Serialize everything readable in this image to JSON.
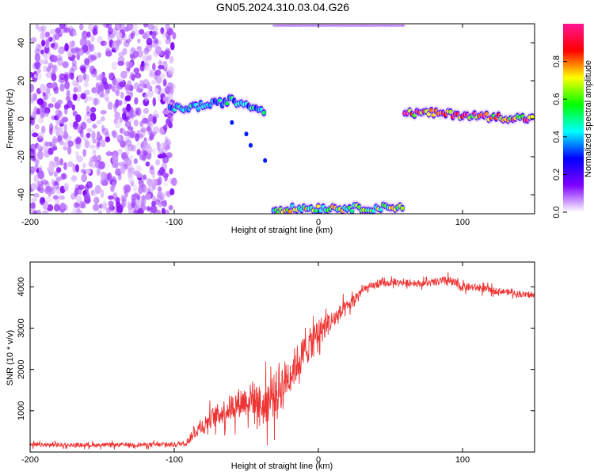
{
  "figure_title": "GN05.2024.310.03.04.G26",
  "chart_data": [
    {
      "type": "heatmap",
      "title": "GN05.2024.310.03.04.G26",
      "xlabel": "Height of straight line (km)",
      "ylabel": "Frequency (Hz)",
      "xlim": [
        -200,
        150
      ],
      "ylim": [
        -50,
        50
      ],
      "xticks": [
        -200,
        -100,
        0,
        100
      ],
      "yticks": [
        -40,
        -20,
        0,
        20,
        40
      ],
      "colorbar": {
        "label": "Normalized spectral amplitude",
        "range": [
          0,
          1
        ],
        "ticks": [
          0.0,
          0.2,
          0.4,
          0.6,
          0.8
        ],
        "tick_labels": [
          "0.0",
          "0.2",
          "0.4",
          "0.6",
          "0.8"
        ],
        "colors": [
          "#ffffff",
          "#7f00ff",
          "#0000ff",
          "#00ffff",
          "#00ff00",
          "#ffff00",
          "#ff0000",
          "#ff1493"
        ]
      },
      "features": [
        {
          "region": "noise",
          "x_range": [
            -200,
            -100
          ],
          "y_range": [
            -50,
            50
          ],
          "amplitude": 0.1
        },
        {
          "region": "band",
          "points": [
            [
              -103,
              5
            ],
            [
              -90,
              6
            ],
            [
              -80,
              7
            ],
            [
              -70,
              8
            ],
            [
              -60,
              10
            ],
            [
              -55,
              8
            ],
            [
              -50,
              8
            ],
            [
              -45,
              6
            ],
            [
              -36,
              4
            ]
          ],
          "amplitude": 0.45
        },
        {
          "region": "band",
          "points": [
            [
              -31,
              -48
            ],
            [
              -10,
              -47
            ],
            [
              20,
              -47
            ],
            [
              40,
              -47
            ],
            [
              60,
              -46
            ]
          ],
          "amplitude": 0.65
        },
        {
          "region": "band",
          "points": [
            [
              60,
              3
            ],
            [
              80,
              3
            ],
            [
              100,
              2
            ],
            [
              120,
              1
            ],
            [
              150,
              0
            ]
          ],
          "amplitude": 0.9
        },
        {
          "region": "scatter",
          "points": [
            [
              -60,
              -2
            ],
            [
              -50,
              -8
            ],
            [
              -47,
              -14
            ],
            [
              -37,
              -22
            ]
          ],
          "amplitude": 0.3
        },
        {
          "region": "faint",
          "points": [
            [
              -30,
              49
            ],
            [
              0,
              49
            ],
            [
              30,
              49
            ],
            [
              60,
              49
            ]
          ],
          "amplitude": 0.1
        }
      ]
    },
    {
      "type": "line",
      "xlabel": "Height of straight line (km)",
      "ylabel": "SNR (10 * v/v)",
      "xlim": [
        -200,
        150
      ],
      "ylim": [
        0,
        4600
      ],
      "xticks": [
        -200,
        -100,
        0,
        100
      ],
      "yticks": [
        1000,
        2000,
        3000,
        4000
      ],
      "color": "#ee3333",
      "series": [
        {
          "x": [
            -200,
            -150,
            -100,
            -92,
            -85,
            -75,
            -65,
            -55,
            -45,
            -38,
            -30,
            -20,
            -10,
            0,
            10,
            20,
            30,
            40,
            50,
            60,
            70,
            80,
            90,
            100,
            110,
            120,
            130,
            140,
            150
          ],
          "y": [
            170,
            170,
            180,
            220,
            500,
            800,
            1000,
            1200,
            1300,
            1100,
            1400,
            1900,
            2400,
            2900,
            3200,
            3500,
            3900,
            4050,
            4100,
            4100,
            4080,
            4100,
            4150,
            4000,
            3980,
            3920,
            3880,
            3820,
            3780
          ],
          "noise": [
            80,
            80,
            90,
            120,
            250,
            380,
            500,
            600,
            650,
            800,
            900,
            800,
            700,
            600,
            400,
            300,
            200,
            150,
            120,
            120,
            130,
            150,
            200,
            170,
            150,
            130,
            120,
            120,
            120
          ]
        }
      ]
    }
  ]
}
